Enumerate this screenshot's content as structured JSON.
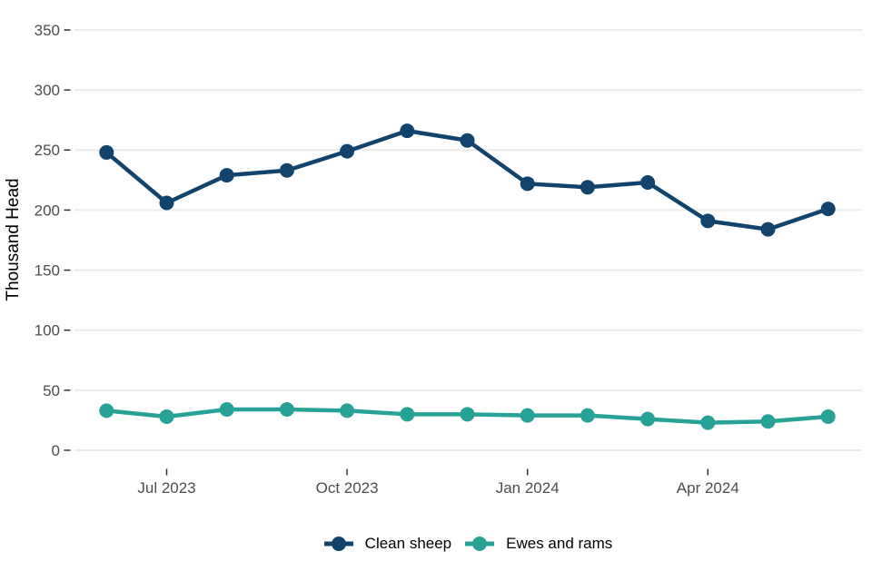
{
  "chart_data": {
    "type": "line",
    "title": "",
    "xlabel": "",
    "ylabel": "Thousand Head",
    "ylim": [
      0,
      350
    ],
    "y_ticks": [
      0,
      50,
      100,
      150,
      200,
      250,
      300,
      350
    ],
    "grid": "horizontal",
    "legend_position": "bottom",
    "x": [
      "Jun 2023",
      "Jul 2023",
      "Aug 2023",
      "Sep 2023",
      "Oct 2023",
      "Nov 2023",
      "Dec 2023",
      "Jan 2024",
      "Feb 2024",
      "Mar 2024",
      "Apr 2024",
      "May 2024",
      "Jun 2024"
    ],
    "x_tick_labels": [
      "Jul 2023",
      "Oct 2023",
      "Jan 2024",
      "Apr 2024"
    ],
    "x_tick_month_indices": [
      1,
      4,
      7,
      10
    ],
    "series": [
      {
        "name": "Clean sheep",
        "color": "#12436D",
        "values": [
          248,
          206,
          229,
          233,
          249,
          266,
          258,
          222,
          219,
          223,
          191,
          184,
          201
        ]
      },
      {
        "name": "Ewes and rams",
        "color": "#28A197",
        "values": [
          33,
          28,
          34,
          34,
          33,
          30,
          30,
          29,
          29,
          26,
          23,
          24,
          28
        ]
      }
    ]
  },
  "colors": {
    "background": "#FFFFFF",
    "grid": "#EBEBEB",
    "tick_mark": "#333333",
    "tick_label": "#4D4D4D",
    "axis_title": "#000000"
  }
}
